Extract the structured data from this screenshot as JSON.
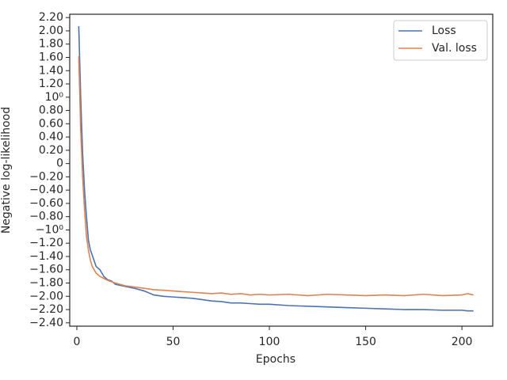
{
  "chart_data": {
    "type": "line",
    "xlabel": "Epochs",
    "ylabel": "Negative log-likelihood",
    "x": [
      1,
      2,
      3,
      4,
      5,
      6,
      7,
      8,
      10,
      12,
      14,
      16,
      18,
      20,
      25,
      30,
      35,
      40,
      45,
      50,
      55,
      60,
      65,
      70,
      75,
      80,
      85,
      90,
      95,
      100,
      110,
      120,
      130,
      140,
      150,
      160,
      170,
      180,
      190,
      200,
      203,
      206
    ],
    "series": [
      {
        "name": "Loss",
        "color": "#4c72b0",
        "values": [
          2.07,
          1.0,
          0.15,
          -0.4,
          -0.8,
          -1.15,
          -1.3,
          -1.38,
          -1.55,
          -1.6,
          -1.7,
          -1.75,
          -1.77,
          -1.82,
          -1.85,
          -1.88,
          -1.92,
          -1.98,
          -2.0,
          -2.01,
          -2.02,
          -2.03,
          -2.05,
          -2.07,
          -2.08,
          -2.1,
          -2.1,
          -2.11,
          -2.12,
          -2.12,
          -2.14,
          -2.15,
          -2.16,
          -2.17,
          -2.18,
          -2.19,
          -2.2,
          -2.2,
          -2.21,
          -2.21,
          -2.22,
          -2.22
        ]
      },
      {
        "name": "Val. loss",
        "color": "#dd8452",
        "values": [
          1.62,
          0.5,
          -0.2,
          -0.7,
          -1.1,
          -1.3,
          -1.45,
          -1.55,
          -1.65,
          -1.7,
          -1.73,
          -1.76,
          -1.78,
          -1.8,
          -1.84,
          -1.86,
          -1.88,
          -1.9,
          -1.91,
          -1.92,
          -1.93,
          -1.94,
          -1.95,
          -1.96,
          -1.95,
          -1.97,
          -1.96,
          -1.98,
          -1.97,
          -1.98,
          -1.97,
          -1.99,
          -1.97,
          -1.98,
          -1.99,
          -1.98,
          -1.99,
          -1.97,
          -1.99,
          -1.98,
          -1.96,
          -1.98
        ]
      }
    ],
    "xlim": [
      -3.7,
      216
    ],
    "xticks": [
      0,
      50,
      100,
      150,
      200
    ],
    "ylim": [
      -2.45,
      2.25
    ],
    "yticks": [
      {
        "value": 2.2,
        "label": "2.20"
      },
      {
        "value": 2.0,
        "label": "2.00"
      },
      {
        "value": 1.8,
        "label": "1.80"
      },
      {
        "value": 1.6,
        "label": "1.60"
      },
      {
        "value": 1.4,
        "label": "1.40"
      },
      {
        "value": 1.2,
        "label": "1.20"
      },
      {
        "value": 1.0,
        "label": "10⁰"
      },
      {
        "value": 0.8,
        "label": "0.80"
      },
      {
        "value": 0.6,
        "label": "0.60"
      },
      {
        "value": 0.4,
        "label": "0.40"
      },
      {
        "value": 0.2,
        "label": "0.20"
      },
      0,
      {
        "value": -0.2,
        "label": "−0.20"
      },
      {
        "value": -0.4,
        "label": "−0.40"
      },
      {
        "value": -0.6,
        "label": "−0.60"
      },
      {
        "value": -0.8,
        "label": "−0.80"
      },
      {
        "value": -1.0,
        "label": "−10⁰"
      },
      {
        "value": -1.2,
        "label": "−1.20"
      },
      {
        "value": -1.4,
        "label": "−1.40"
      },
      {
        "value": -1.6,
        "label": "−1.60"
      },
      {
        "value": -1.8,
        "label": "−1.80"
      },
      {
        "value": -2.0,
        "label": "−2.00"
      },
      {
        "value": -2.2,
        "label": "−2.20"
      },
      {
        "value": -2.4,
        "label": "−2.40"
      }
    ],
    "legend": "upper right"
  }
}
